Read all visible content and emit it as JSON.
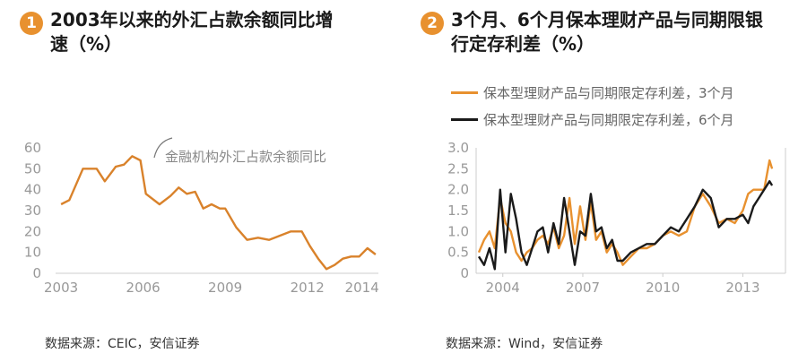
{
  "chart_data": [
    {
      "type": "line",
      "badge": "1",
      "title_line1": "2003年以来的外汇占款余额同比增",
      "title_line2": "速（%）",
      "annotation": "金融机构外汇占款余额同比",
      "source": "数据来源：CEIC，安信证券",
      "ylim": [
        0,
        60
      ],
      "yticks": [
        0,
        10,
        20,
        30,
        40,
        50,
        60
      ],
      "xlim": [
        2002.8,
        2014.6
      ],
      "xticks": [
        2003,
        2006,
        2009,
        2012,
        2014
      ],
      "color": "#d9822b",
      "series": [
        {
          "x": [
            2003.0,
            2003.3,
            2003.8,
            2004.3,
            2004.6,
            2005.0,
            2005.3,
            2005.6,
            2005.9,
            2006.1,
            2006.6,
            2007.0,
            2007.3,
            2007.6,
            2007.9,
            2008.2,
            2008.5,
            2008.8,
            2009.0,
            2009.4,
            2009.8,
            2010.2,
            2010.6,
            2011.0,
            2011.4,
            2011.8,
            2012.1,
            2012.4,
            2012.7,
            2013.0,
            2013.3,
            2013.6,
            2013.9,
            2014.2,
            2014.5
          ],
          "y": [
            33,
            35,
            50,
            50,
            44,
            51,
            52,
            56,
            54,
            38,
            33,
            37,
            41,
            38,
            39,
            31,
            33,
            31,
            31,
            22,
            16,
            17,
            16,
            18,
            20,
            20,
            13,
            7,
            2,
            4,
            7,
            8,
            8,
            12,
            9
          ]
        }
      ]
    },
    {
      "type": "line",
      "badge": "2",
      "title_line1": "3个月、6个月保本理财产品与同期限银",
      "title_line2": "行定存利差（%）",
      "source": "数据来源：Wind，安信证券",
      "ylim": [
        0,
        3.0
      ],
      "yticks": [
        "0",
        "0.5",
        "1.0",
        "1.5",
        "2.0",
        "2.5",
        "3.0"
      ],
      "xlim": [
        2003.0,
        2014.6
      ],
      "xticks": [
        2004,
        2007,
        2010,
        2013
      ],
      "series": [
        {
          "name": "保本型理财产品与同期限定存利差，3个月",
          "color": "#e8912f",
          "x": [
            2003.1,
            2003.3,
            2003.5,
            2003.7,
            2003.9,
            2004.1,
            2004.3,
            2004.5,
            2004.7,
            2004.9,
            2005.1,
            2005.3,
            2005.5,
            2005.7,
            2005.9,
            2006.1,
            2006.3,
            2006.5,
            2006.7,
            2006.9,
            2007.1,
            2007.3,
            2007.5,
            2007.7,
            2007.9,
            2008.1,
            2008.3,
            2008.5,
            2008.8,
            2009.1,
            2009.4,
            2009.7,
            2010.0,
            2010.3,
            2010.6,
            2010.9,
            2011.2,
            2011.5,
            2011.8,
            2012.1,
            2012.4,
            2012.7,
            2013.0,
            2013.2,
            2013.4,
            2013.6,
            2013.8,
            2014.0,
            2014.1
          ],
          "y": [
            0.5,
            0.8,
            1.0,
            0.6,
            1.8,
            1.2,
            1.0,
            0.5,
            0.3,
            0.5,
            0.6,
            0.8,
            0.9,
            0.7,
            1.1,
            0.6,
            0.9,
            1.8,
            0.7,
            1.6,
            0.8,
            1.7,
            0.8,
            1.0,
            0.5,
            0.7,
            0.5,
            0.2,
            0.4,
            0.6,
            0.6,
            0.7,
            0.9,
            1.0,
            0.9,
            1.0,
            1.6,
            1.9,
            1.6,
            1.2,
            1.3,
            1.2,
            1.5,
            1.9,
            2.0,
            2.0,
            2.0,
            2.7,
            2.5
          ]
        },
        {
          "name": "保本型理财产品与同期限定存利差，6个月",
          "color": "#1a1a1a",
          "x": [
            2003.1,
            2003.3,
            2003.5,
            2003.7,
            2003.9,
            2004.1,
            2004.3,
            2004.5,
            2004.7,
            2004.9,
            2005.1,
            2005.3,
            2005.5,
            2005.7,
            2005.9,
            2006.1,
            2006.3,
            2006.5,
            2006.7,
            2006.9,
            2007.1,
            2007.3,
            2007.5,
            2007.7,
            2007.9,
            2008.1,
            2008.3,
            2008.5,
            2008.8,
            2009.1,
            2009.4,
            2009.7,
            2010.0,
            2010.3,
            2010.6,
            2010.9,
            2011.2,
            2011.5,
            2011.8,
            2012.1,
            2012.4,
            2012.7,
            2013.0,
            2013.2,
            2013.4,
            2013.6,
            2013.8,
            2014.0,
            2014.1
          ],
          "y": [
            0.4,
            0.2,
            0.6,
            0.1,
            2.0,
            0.5,
            1.9,
            1.3,
            0.5,
            0.2,
            0.6,
            1.0,
            1.1,
            0.5,
            1.2,
            0.7,
            1.8,
            1.0,
            0.2,
            1.0,
            0.9,
            1.9,
            1.0,
            1.1,
            0.6,
            0.8,
            0.3,
            0.3,
            0.5,
            0.6,
            0.7,
            0.7,
            0.9,
            1.1,
            1.0,
            1.3,
            1.6,
            2.0,
            1.8,
            1.1,
            1.3,
            1.3,
            1.4,
            1.2,
            1.6,
            1.8,
            2.0,
            2.2,
            2.1
          ]
        }
      ]
    }
  ]
}
